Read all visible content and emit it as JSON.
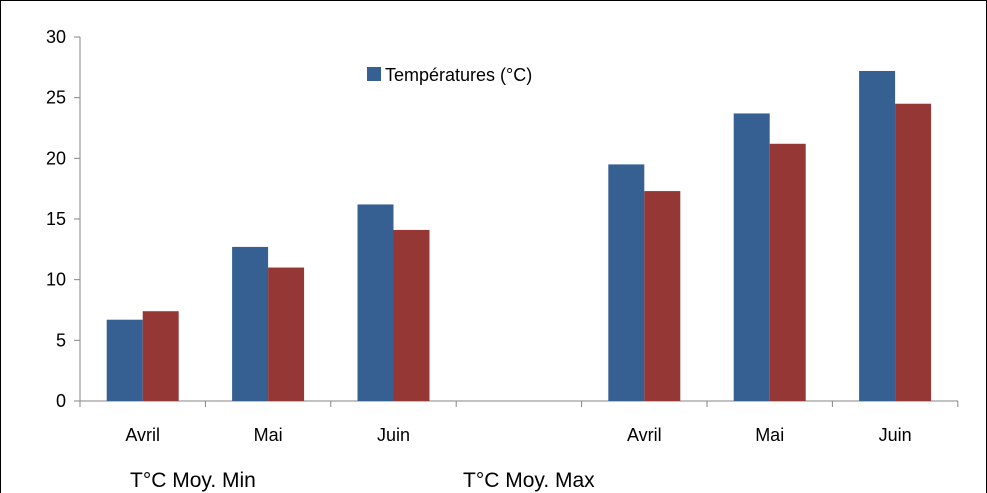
{
  "chart_data": {
    "type": "bar",
    "ylim": [
      0,
      30
    ],
    "yticks": [
      0,
      5,
      10,
      15,
      20,
      25,
      30
    ],
    "grid": false,
    "legend_position": "top-center",
    "groups": [
      {
        "label": "T°C Moy. Min",
        "categories": [
          "Avril",
          "Mai",
          "Juin"
        ]
      },
      {
        "label": "T°C Moy. Max",
        "categories": [
          "Avril",
          "Mai",
          "Juin"
        ]
      }
    ],
    "series": [
      {
        "name": "Températures (°C)",
        "color": "#376092",
        "values": [
          6.7,
          12.7,
          16.2,
          19.5,
          23.7,
          27.2
        ]
      },
      {
        "name": "",
        "color": "#953735",
        "values": [
          7.4,
          11.0,
          14.1,
          17.3,
          21.2,
          24.5
        ]
      }
    ]
  }
}
